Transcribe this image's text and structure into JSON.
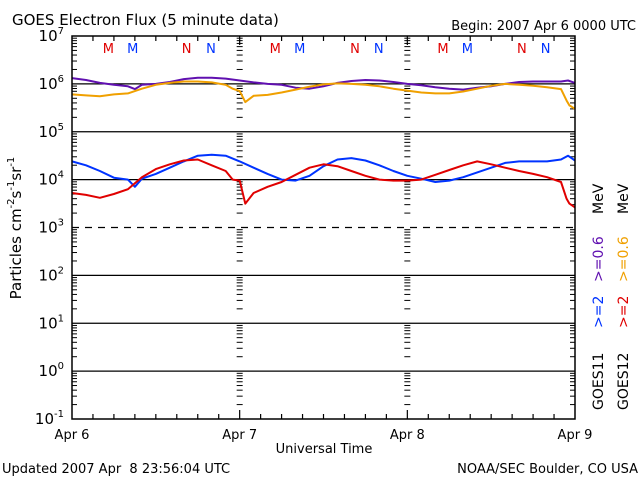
{
  "chart_data": {
    "type": "line",
    "title": "GOES Electron Flux (5 minute data)",
    "begin_label": "Begin: 2007 Apr 6 0000 UTC",
    "xlabel": "Universal Time",
    "ylabel": "Particles cm-2 s-1 sr-1",
    "ylabel_parts": {
      "base": "Particles cm",
      "e1": "-2",
      "s": "s",
      "e2": "-1",
      "sr": "sr",
      "e3": "-1"
    },
    "yscale": "log",
    "ylim_exponents": [
      -1,
      7
    ],
    "y_tick_labels": [
      {
        "exp": 7,
        "label_base": "10",
        "label_exp": "7"
      },
      {
        "exp": 6,
        "label_base": "10",
        "label_exp": "6"
      },
      {
        "exp": 5,
        "label_base": "10",
        "label_exp": "5"
      },
      {
        "exp": 4,
        "label_base": "10",
        "label_exp": "4"
      },
      {
        "exp": 3,
        "label_base": "10",
        "label_exp": "3"
      },
      {
        "exp": 2,
        "label_base": "10",
        "label_exp": "2"
      },
      {
        "exp": 1,
        "label_base": "10",
        "label_exp": "1"
      },
      {
        "exp": 0,
        "label_base": "10",
        "label_exp": "0"
      },
      {
        "exp": -1,
        "label_base": "10",
        "label_exp": "-1"
      }
    ],
    "solid_gridlines_exp": [
      6,
      5,
      4,
      2,
      1,
      0
    ],
    "dashed_gridlines_exp": [
      3
    ],
    "x_unit": "hours since 2007 Apr 6 0000 UTC",
    "xlim": [
      0,
      72
    ],
    "x_tick_labels": [
      {
        "x": 0,
        "label": "Apr 6"
      },
      {
        "x": 24,
        "label": "Apr 7"
      },
      {
        "x": 48,
        "label": "Apr 8"
      },
      {
        "x": 72,
        "label": "Apr 9"
      }
    ],
    "markers": [
      {
        "x": 5.2,
        "label": "M",
        "color": "#e00000"
      },
      {
        "x": 8.7,
        "label": "M",
        "color": "#0033ff"
      },
      {
        "x": 16.4,
        "label": "N",
        "color": "#e00000"
      },
      {
        "x": 19.9,
        "label": "N",
        "color": "#0033ff"
      },
      {
        "x": 29.1,
        "label": "M",
        "color": "#e00000"
      },
      {
        "x": 32.6,
        "label": "M",
        "color": "#0033ff"
      },
      {
        "x": 40.5,
        "label": "N",
        "color": "#e00000"
      },
      {
        "x": 43.9,
        "label": "N",
        "color": "#0033ff"
      },
      {
        "x": 53.1,
        "label": "M",
        "color": "#e00000"
      },
      {
        "x": 56.6,
        "label": "M",
        "color": "#0033ff"
      },
      {
        "x": 64.4,
        "label": "N",
        "color": "#e00000"
      },
      {
        "x": 67.8,
        "label": "N",
        "color": "#0033ff"
      }
    ],
    "legend": {
      "placement": "right",
      "columns": [
        {
          "satellite": "GOES11",
          "entries": [
            {
              "label": ">=2",
              "color": "#0033ff"
            },
            {
              "label": ">=0.6",
              "color": "#6010b0"
            },
            {
              "unit": "MeV"
            }
          ]
        },
        {
          "satellite": "GOES12",
          "entries": [
            {
              "label": ">=2",
              "color": "#e00000"
            },
            {
              "label": ">=0.6",
              "color": "#f0a000"
            },
            {
              "unit": "MeV"
            }
          ]
        }
      ]
    },
    "series": [
      {
        "name": "GOES11 >=0.6 MeV",
        "color": "#6010b0",
        "x": [
          0,
          2,
          4,
          6,
          8,
          9,
          10,
          12,
          14,
          16,
          18,
          20,
          22,
          24,
          26,
          28,
          30,
          32,
          34,
          36,
          38,
          40,
          42,
          44,
          46,
          48,
          50,
          52,
          54,
          56,
          58,
          60,
          62,
          64,
          66,
          68,
          70,
          71,
          72
        ],
        "log10y": [
          6.12,
          6.08,
          6.02,
          5.98,
          5.95,
          5.89,
          5.98,
          6.0,
          6.04,
          6.1,
          6.13,
          6.13,
          6.11,
          6.07,
          6.03,
          6.0,
          5.98,
          5.92,
          5.9,
          5.95,
          6.02,
          6.06,
          6.08,
          6.07,
          6.04,
          6.0,
          5.97,
          5.93,
          5.9,
          5.88,
          5.92,
          5.95,
          6.0,
          6.04,
          6.05,
          6.05,
          6.05,
          6.07,
          6.02
        ]
      },
      {
        "name": "GOES12 >=0.6 MeV",
        "color": "#f0a000",
        "x": [
          0,
          2,
          4,
          6,
          8,
          10,
          12,
          14,
          16,
          18,
          20,
          22,
          23,
          24,
          24.8,
          26,
          28,
          30,
          32,
          34,
          36,
          38,
          40,
          42,
          44,
          46,
          48,
          50,
          52,
          54,
          56,
          58,
          60,
          62,
          64,
          66,
          68,
          70,
          70.8,
          71.2,
          72
        ],
        "log10y": [
          5.78,
          5.76,
          5.74,
          5.78,
          5.8,
          5.9,
          5.98,
          6.02,
          6.05,
          6.05,
          6.03,
          5.98,
          5.9,
          5.85,
          5.62,
          5.75,
          5.77,
          5.82,
          5.88,
          5.94,
          5.99,
          6.01,
          6.0,
          5.98,
          5.95,
          5.9,
          5.86,
          5.82,
          5.8,
          5.8,
          5.84,
          5.9,
          5.96,
          6.0,
          5.98,
          5.96,
          5.93,
          5.89,
          5.65,
          5.55,
          5.48
        ]
      },
      {
        "name": "GOES11 >=2 MeV",
        "color": "#0033ff",
        "x": [
          0,
          2,
          4,
          6,
          8,
          9,
          10,
          12,
          14,
          16,
          18,
          20,
          22,
          24,
          26,
          28,
          30,
          32,
          34,
          36,
          38,
          40,
          42,
          44,
          46,
          48,
          50,
          52,
          54,
          56,
          58,
          60,
          62,
          64,
          66,
          68,
          70,
          71,
          72
        ],
        "log10y": [
          4.38,
          4.3,
          4.18,
          4.04,
          4.0,
          3.85,
          4.02,
          4.12,
          4.25,
          4.38,
          4.5,
          4.52,
          4.5,
          4.38,
          4.25,
          4.12,
          4.0,
          3.98,
          4.08,
          4.28,
          4.42,
          4.45,
          4.4,
          4.3,
          4.18,
          4.08,
          4.02,
          3.95,
          3.98,
          4.05,
          4.15,
          4.25,
          4.35,
          4.38,
          4.38,
          4.38,
          4.42,
          4.5,
          4.4
        ]
      },
      {
        "name": "GOES12 >=2 MeV",
        "color": "#e00000",
        "x": [
          0,
          2,
          4,
          6,
          8,
          10,
          12,
          14,
          16,
          18,
          20,
          22,
          23,
          24,
          24.8,
          26,
          28,
          30,
          32,
          34,
          36,
          38,
          40,
          42,
          44,
          46,
          48,
          50,
          52,
          54,
          56,
          58,
          60,
          62,
          64,
          66,
          68,
          70,
          70.8,
          71.2,
          72
        ],
        "log10y": [
          3.72,
          3.68,
          3.62,
          3.7,
          3.8,
          4.05,
          4.22,
          4.32,
          4.4,
          4.42,
          4.3,
          4.18,
          4.0,
          3.98,
          3.5,
          3.72,
          3.85,
          3.95,
          4.1,
          4.25,
          4.32,
          4.28,
          4.18,
          4.08,
          4.0,
          3.98,
          3.98,
          4.0,
          4.1,
          4.2,
          4.3,
          4.38,
          4.32,
          4.25,
          4.18,
          4.12,
          4.05,
          3.95,
          3.6,
          3.5,
          3.42
        ]
      }
    ]
  },
  "footer": {
    "updated": "Updated 2007 Apr  8 23:56:04 UTC",
    "credit": "NOAA/SEC Boulder, CO USA"
  }
}
